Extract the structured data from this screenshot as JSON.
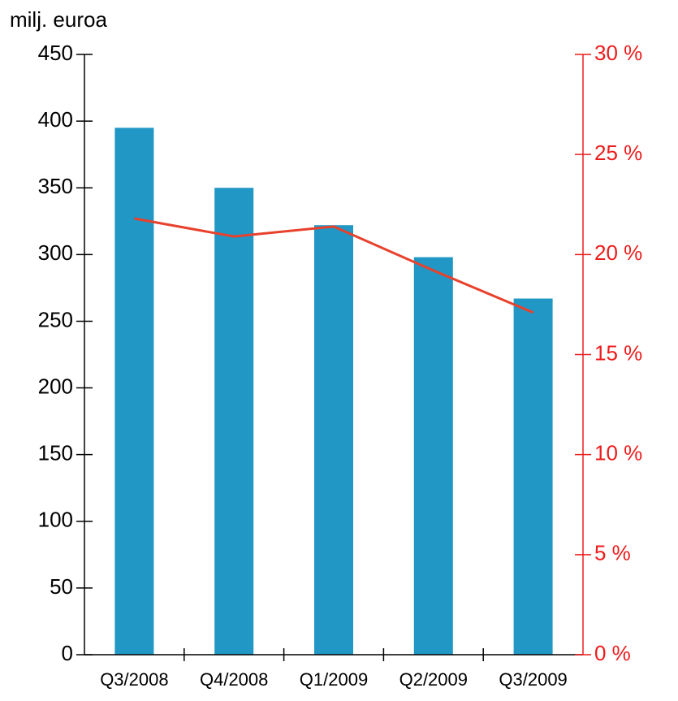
{
  "chart_data": {
    "type": "bar_line",
    "ylabel": "milj. euroa",
    "categories": [
      "Q3/2008",
      "Q4/2008",
      "Q1/2009",
      "Q2/2009",
      "Q3/2009"
    ],
    "series": [
      {
        "type": "bar",
        "color": "#2097c4",
        "values": [
          395,
          350,
          322,
          298,
          267
        ]
      },
      {
        "type": "line",
        "color": "#e8412c",
        "axis": "y2",
        "values": [
          21.8,
          20.9,
          21.4,
          19.2,
          17.1
        ]
      }
    ],
    "ylim": [
      0,
      450
    ],
    "yticks": [
      0,
      50,
      100,
      150,
      200,
      250,
      300,
      350,
      400,
      450
    ],
    "y2lim": [
      0,
      30
    ],
    "y2ticks": [
      {
        "value": 0,
        "label": "0 %"
      },
      {
        "value": 5,
        "label": "5 %"
      },
      {
        "value": 10,
        "label": "10 %"
      },
      {
        "value": 15,
        "label": "15 %"
      },
      {
        "value": 20,
        "label": "20 %"
      },
      {
        "value": 25,
        "label": "25 %"
      },
      {
        "value": 30,
        "label": "30 %"
      }
    ],
    "y2color": "#ee1c1c"
  }
}
